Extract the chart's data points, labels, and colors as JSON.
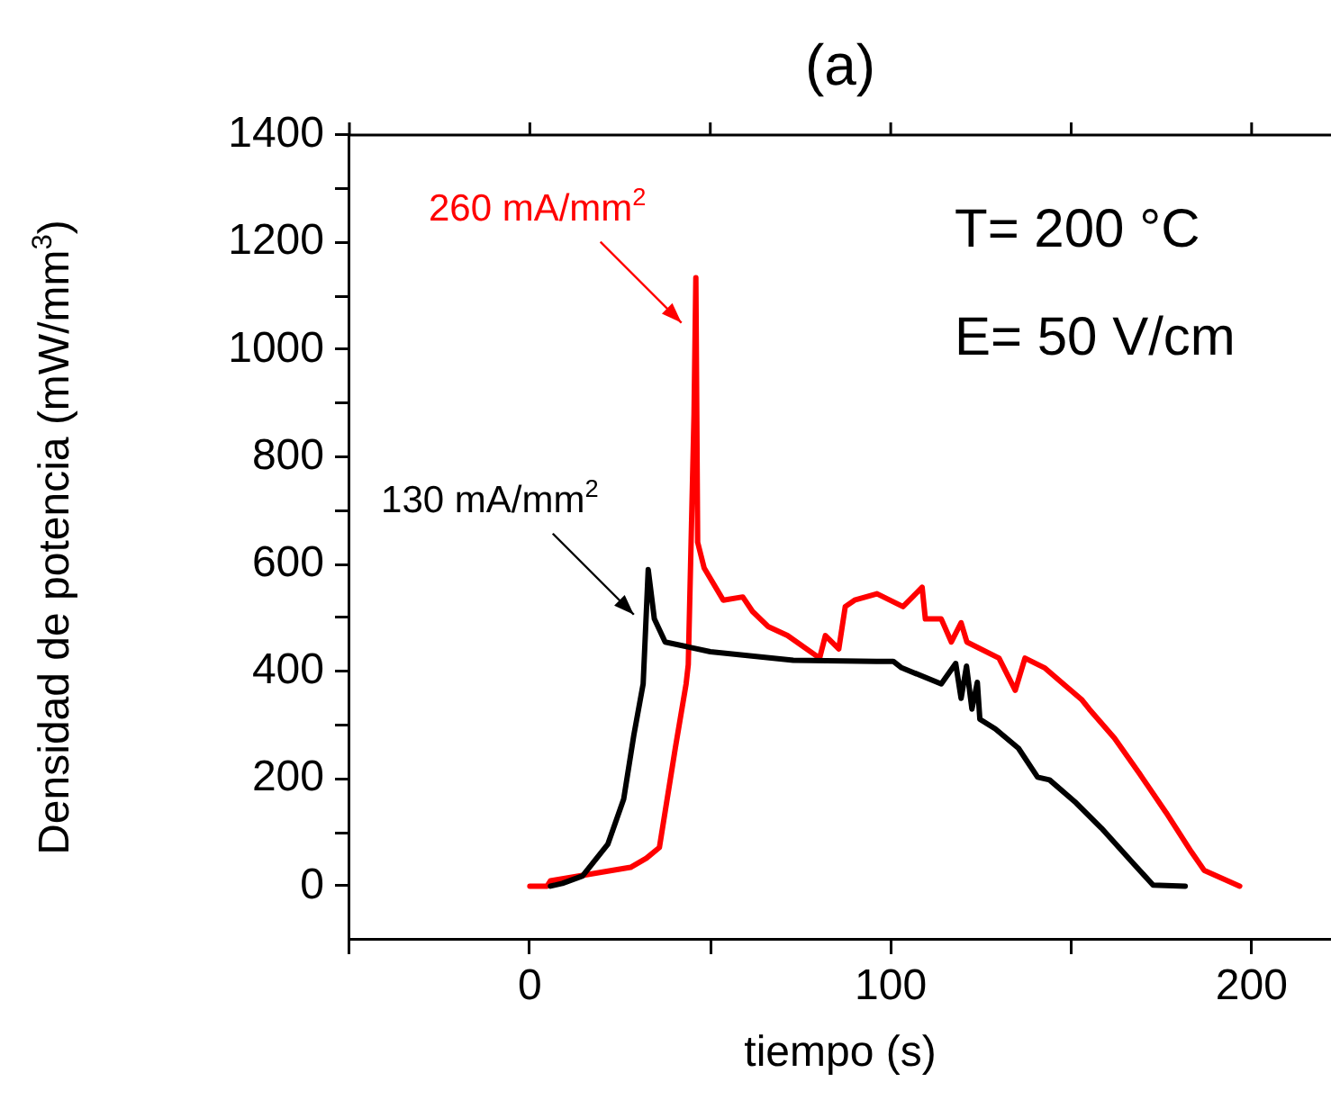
{
  "chart_data": {
    "type": "line",
    "title": "(a)",
    "xlabel": "tiempo (s)",
    "ylabel": "Densidad de potencia (mW/mm$^{3}$)",
    "xlim": [
      -50,
      222
    ],
    "xticks": [
      {
        "value": -50,
        "label": null
      },
      0,
      {
        "value": 50,
        "label": null
      },
      100,
      {
        "value": 150,
        "label": null
      },
      200
    ],
    "ylim": [
      -100,
      1400
    ],
    "yticks": [
      0,
      {
        "value": 100,
        "label": null
      },
      200,
      {
        "value": 300,
        "label": null
      },
      400,
      {
        "value": 500,
        "label": null
      },
      600,
      {
        "value": 700,
        "label": null
      },
      800,
      {
        "value": 900,
        "label": null
      },
      1000,
      {
        "value": 1100,
        "label": null
      },
      1200,
      {
        "value": 1300,
        "label": null
      },
      1400
    ],
    "marker": "none",
    "line_style": "solid",
    "annotations": [
      "T= 200 °C",
      "E= 50 V/cm"
    ],
    "series": [
      {
        "name": "130 mA/mm$^{2}$",
        "color": "#000000",
        "x": [
          5.7,
          9,
          14.6,
          21.6,
          26,
          28.8,
          31.4,
          32.8,
          34.5,
          37.5,
          50,
          73,
          96,
          100.7,
          103,
          114,
          118,
          119.5,
          121,
          122.5,
          124,
          124.7,
          129,
          135.4,
          140.7,
          144,
          151.4,
          158.4,
          167.4,
          172.7,
          181.6
        ],
        "values": [
          0,
          5,
          19,
          78,
          162,
          281,
          377,
          590,
          498,
          455,
          437,
          421,
          419,
          419,
          407,
          377,
          415,
          350,
          410,
          330,
          380,
          311,
          293,
          257,
          203,
          198,
          155,
          108,
          41,
          2,
          0
        ]
      },
      {
        "name": "260 mA/mm$^{2}$",
        "color": "#ff0000",
        "x": [
          0,
          4.8,
          5.7,
          27.9,
          32.3,
          35.9,
          40.3,
          43.3,
          43.9,
          45.5,
          46,
          46.5,
          48.3,
          53.6,
          59,
          61.7,
          66,
          71.4,
          80.3,
          81.9,
          85.6,
          87.4,
          90,
          96.2,
          103.4,
          108.7,
          109.6,
          114,
          116.8,
          119.5,
          121.1,
          130,
          134.5,
          137.2,
          142.6,
          153,
          155,
          162,
          169,
          176.3,
          183.3,
          186.9,
          196.7
        ],
        "values": [
          0,
          0,
          10,
          35,
          52,
          72,
          257,
          377,
          413,
          880,
          1134,
          641,
          593,
          533,
          539,
          512,
          484,
          467,
          425,
          467,
          442,
          521,
          533,
          545,
          521,
          557,
          498,
          498,
          455,
          491,
          455,
          425,
          365,
          425,
          407,
          347,
          330,
          276,
          209,
          137,
          64,
          29,
          0
        ]
      }
    ]
  }
}
